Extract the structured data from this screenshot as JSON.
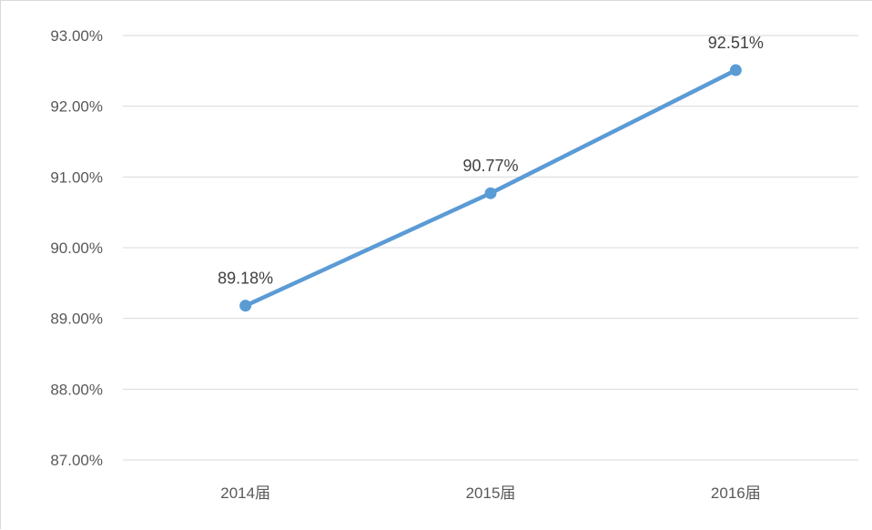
{
  "chart_data": {
    "type": "line",
    "title": "",
    "xlabel": "",
    "ylabel": "",
    "categories": [
      "2014届",
      "2015届",
      "2016届"
    ],
    "series": [
      {
        "values": [
          89.18,
          90.77,
          92.51
        ],
        "labels": [
          "89.18%",
          "90.77%",
          "92.51%"
        ],
        "color": "#5b9bd5"
      }
    ],
    "ylim": [
      87,
      93
    ],
    "yticks": [
      "87.00%",
      "88.00%",
      "89.00%",
      "90.00%",
      "91.00%",
      "92.00%",
      "93.00%"
    ],
    "grid": true,
    "legend": "none",
    "colors": {
      "line": "#5b9bd5",
      "grid": "#d9d9d9",
      "tick_text": "#595959",
      "label_text": "#404040"
    }
  }
}
